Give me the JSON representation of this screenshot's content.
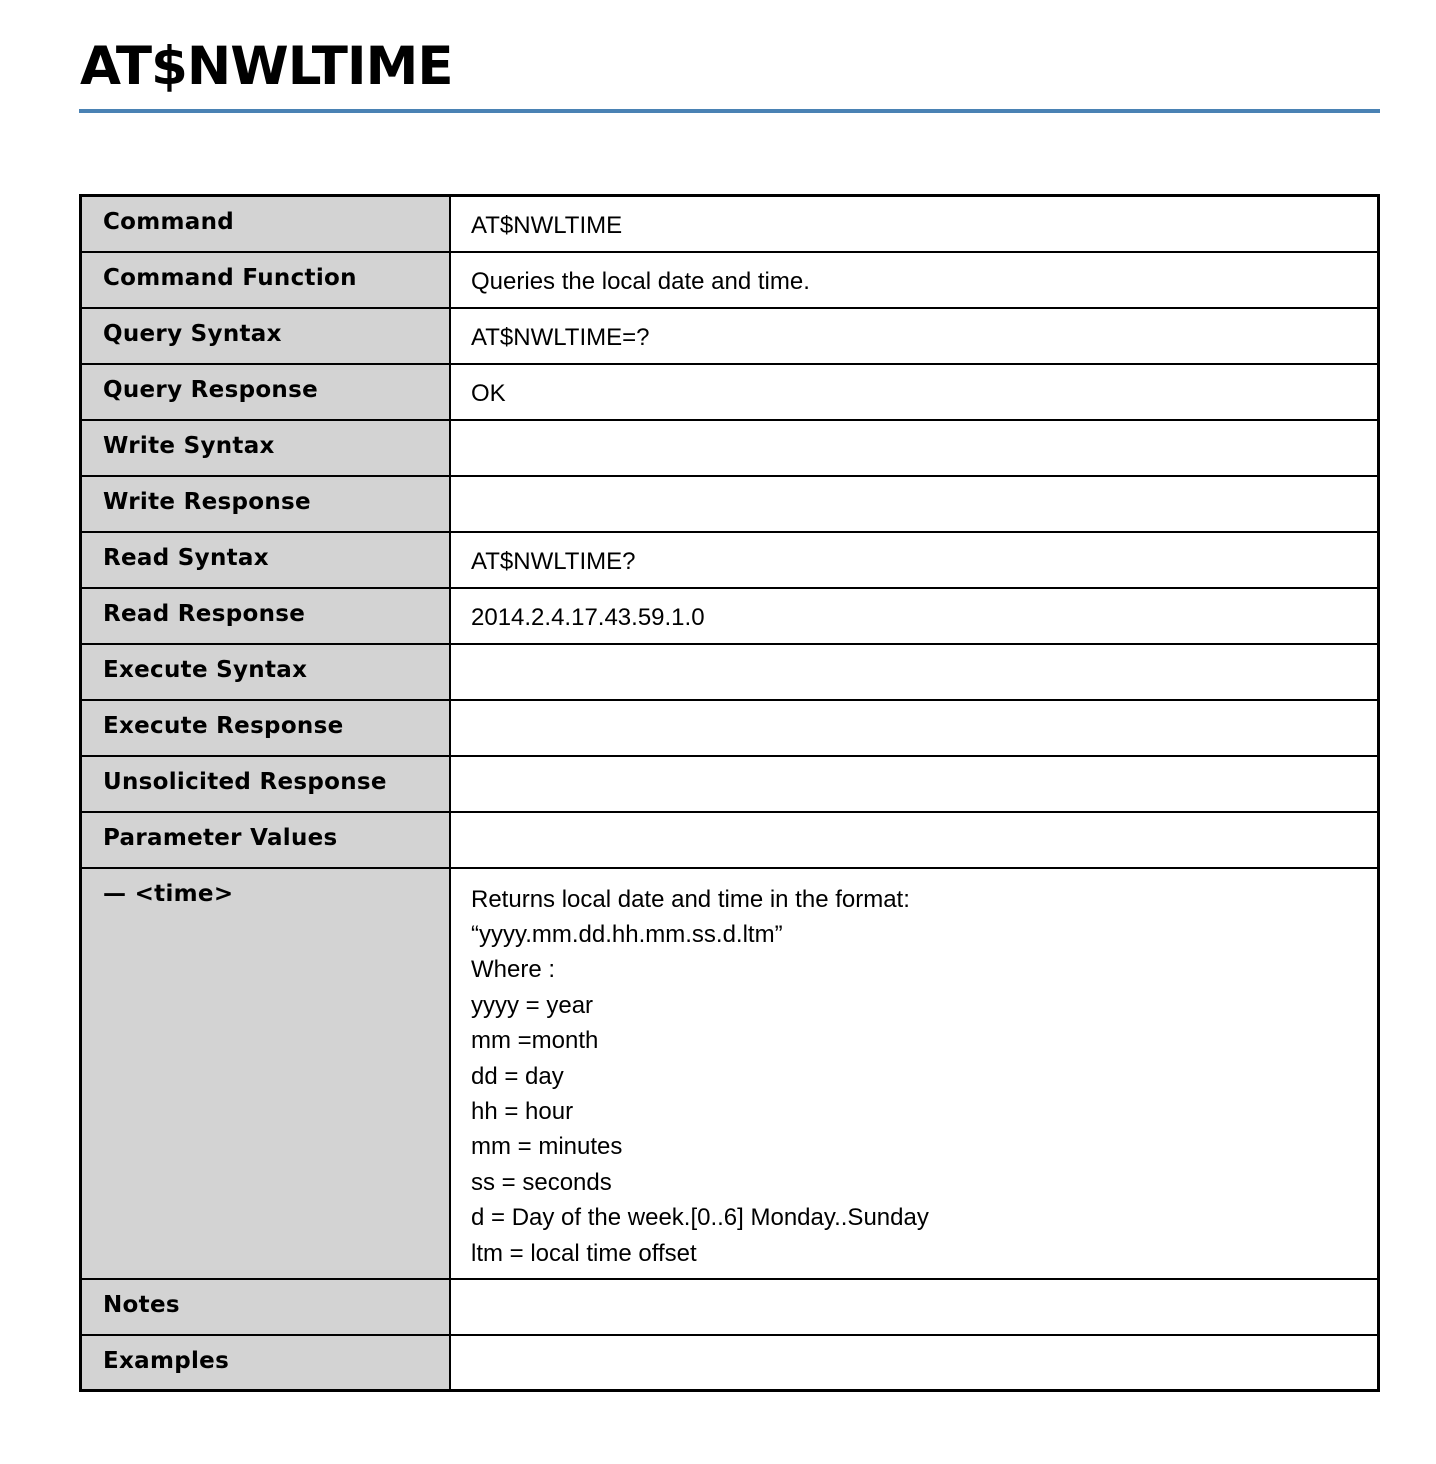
{
  "title": "AT$NWLTIME",
  "accent_color": "#4a82b4",
  "rows": [
    {
      "label": "Command",
      "value": "AT$NWLTIME"
    },
    {
      "label": "Command Function",
      "value": "Queries the local date and time."
    },
    {
      "label": "Query Syntax",
      "value": "AT$NWLTIME=?"
    },
    {
      "label": "Query Response",
      "value": "OK"
    },
    {
      "label": "Write Syntax",
      "value": ""
    },
    {
      "label": "Write Response",
      "value": ""
    },
    {
      "label": "Read Syntax",
      "value": "AT$NWLTIME?"
    },
    {
      "label": "Read Response",
      "value": "2014.2.4.17.43.59.1.0"
    },
    {
      "label": "Execute Syntax",
      "value": ""
    },
    {
      "label": "Execute Response",
      "value": ""
    },
    {
      "label": "Unsolicited Response",
      "value": ""
    },
    {
      "label": "Parameter Values",
      "value": ""
    },
    {
      "label": "— <time>",
      "lines": [
        "Returns local date and time in the format:",
        "“yyyy.mm.dd.hh.mm.ss.d.ltm”",
        "Where :",
        "yyyy = year",
        "mm =month",
        "dd = day",
        "hh = hour",
        "mm = minutes",
        "ss = seconds",
        "d = Day of the week.[0..6] Monday..Sunday",
        "ltm = local time offset"
      ]
    },
    {
      "label": "Notes",
      "value": ""
    },
    {
      "label": "Examples",
      "value": ""
    }
  ]
}
